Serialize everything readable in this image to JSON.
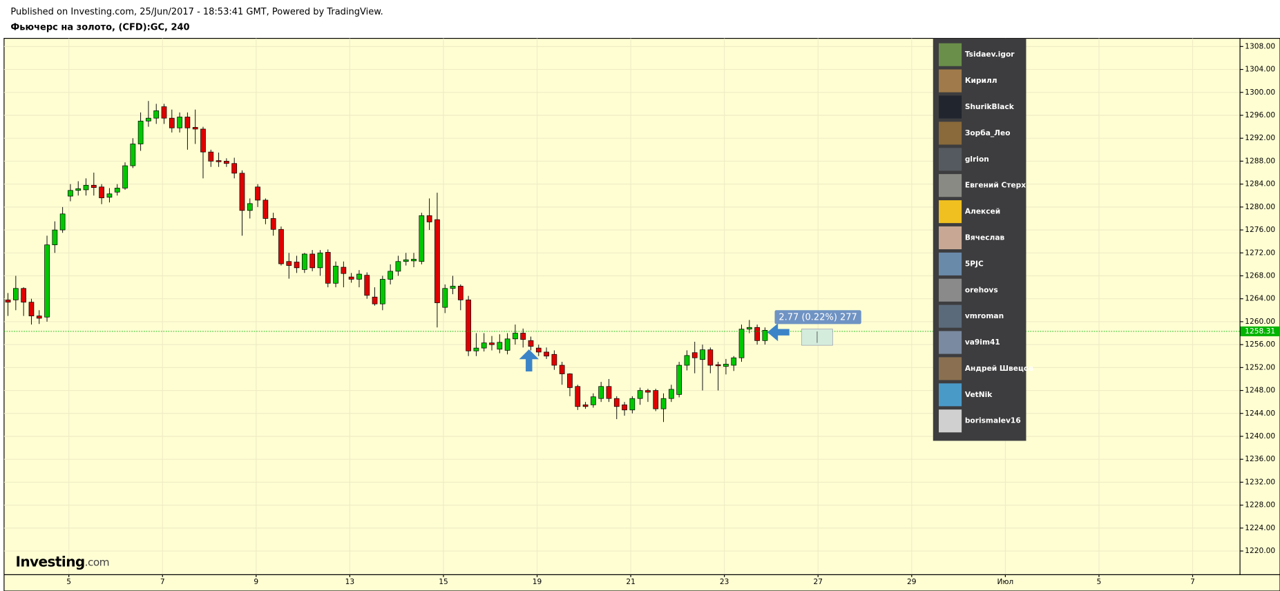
{
  "chart_data": {
    "type": "candlestick",
    "subtitle": "Published on Investing.com, 25/Jun/2017 - 18:53:41 GMT, Powered by TradingView.",
    "title": "Фьючерс на золото, (CFD):GC, 240",
    "annotation": "2.77 (0.22%) 277",
    "x": [
      0.5,
      1.5,
      2.5,
      3.5,
      4.5,
      5.5,
      6.5,
      7.5,
      8.5,
      9.5,
      10.5,
      11.5,
      12.5,
      13.5,
      14.5,
      15.5,
      16.5,
      17.5,
      18.5,
      19.5,
      20.5,
      21.5,
      22.5,
      23.5,
      24.5,
      25.5,
      26.5,
      27.5,
      28.5,
      29.5,
      30.5,
      31.5,
      32.5,
      33.5,
      34.5,
      35.5,
      36.5,
      37.5,
      38.5,
      39.5,
      40.5,
      41.5,
      42.5,
      43.5,
      44.5,
      45.5,
      46.5,
      47.5,
      48.5,
      49.5,
      50.5,
      51.5,
      52.5,
      53.5,
      54.5,
      55.5,
      56.5,
      57.5,
      58.5,
      59.5,
      60.5,
      61.5,
      62.5,
      63.5,
      64.5,
      65.5,
      66.5,
      67.5,
      68.5,
      69.5,
      70.5,
      71.5,
      72.5,
      73.5,
      74.5,
      75.5,
      76.5,
      77.5,
      78.5,
      79.5,
      80.5,
      81.5,
      82.5,
      83.5,
      84.5,
      85.5,
      86.5,
      87.5,
      88.5,
      89.5,
      90.5,
      91.5,
      92.5,
      93.5,
      94.5,
      95.5,
      96.5,
      97.5
    ],
    "open": [
      1263.8,
      1263.8,
      1265.8,
      1263.4,
      1261,
      1260.8,
      1273.4,
      1276,
      1281.9,
      1282.9,
      1283,
      1283.8,
      1283.5,
      1281.7,
      1282.6,
      1283.3,
      1287.2,
      1291,
      1295,
      1295.5,
      1297.5,
      1295.5,
      1293.8,
      1295.7,
      1293.9,
      1293.6,
      1289.6,
      1288.1,
      1288,
      1287.6,
      1285.9,
      1279.4,
      1283.5,
      1281.2,
      1278,
      1276.1,
      1270.5,
      1270.4,
      1269.1,
      1271.8,
      1269.4,
      1272.1,
      1266.7,
      1269.5,
      1267.8,
      1267.4,
      1268.1,
      1264.3,
      1263.1,
      1267.4,
      1268.8,
      1270.5,
      1270.6,
      1270.5,
      1278.5,
      1277.8,
      1262.5,
      1265.8,
      1266.2,
      1263.8,
      1254.9,
      1255.4,
      1256.3,
      1255.2,
      1255,
      1257,
      1258,
      1256.7,
      1255.4,
      1254.7,
      1254.3,
      1252.4,
      1250.9,
      1248.7,
      1245.5,
      1245.5,
      1246.6,
      1248.7,
      1246.6,
      1245.5,
      1244.6,
      1246.6,
      1248,
      1248,
      1244.8,
      1246.6,
      1247.3,
      1252.4,
      1254.6,
      1253.4,
      1255.1,
      1252.5,
      1252.2,
      1252.4,
      1253.7,
      1258.7,
      1259,
      1256.7
    ],
    "high": [
      1265,
      1268,
      1266,
      1264,
      1262,
      1275,
      1277.5,
      1280,
      1284,
      1284.5,
      1285,
      1286,
      1284,
      1283.3,
      1284,
      1287.8,
      1292,
      1296.5,
      1298.5,
      1298,
      1298,
      1297,
      1296.5,
      1296.5,
      1297,
      1294,
      1290,
      1289.5,
      1288.5,
      1288.6,
      1286.4,
      1281.5,
      1284,
      1281.5,
      1279,
      1276.6,
      1272,
      1271.5,
      1272,
      1272.5,
      1272.5,
      1272.6,
      1270.5,
      1270.5,
      1268.5,
      1269,
      1268.6,
      1266,
      1268,
      1270,
      1271.5,
      1272,
      1272,
      1279,
      1281.5,
      1282.5,
      1266.5,
      1268,
      1266.5,
      1264.5,
      1258,
      1258,
      1257.5,
      1257.8,
      1258,
      1259.5,
      1258.8,
      1257.4,
      1256,
      1255.5,
      1255,
      1253,
      1251,
      1249,
      1246,
      1247.5,
      1249.5,
      1250,
      1247,
      1246,
      1247,
      1248.5,
      1248.3,
      1248.3,
      1247.5,
      1249,
      1253,
      1255,
      1256.5,
      1256,
      1255.5,
      1253,
      1253.5,
      1254,
      1259.5,
      1260.3,
      1259.5,
      1259
    ],
    "low": [
      1261,
      1262,
      1261,
      1259.5,
      1259.6,
      1260,
      1272,
      1275.5,
      1281,
      1282,
      1282,
      1282,
      1280.5,
      1280.8,
      1282,
      1283,
      1286.8,
      1289.8,
      1294,
      1294.5,
      1294.5,
      1293,
      1293,
      1290,
      1291,
      1285,
      1287,
      1287,
      1287,
      1285,
      1275,
      1278,
      1280,
      1277,
      1275,
      1269.8,
      1267.5,
      1268.5,
      1268.5,
      1268.8,
      1268,
      1266,
      1266,
      1266,
      1266.8,
      1266,
      1264,
      1262.8,
      1262,
      1266.5,
      1268,
      1269.8,
      1269.5,
      1270,
      1276,
      1259,
      1261.5,
      1264.8,
      1262,
      1254,
      1254,
      1254.8,
      1255,
      1254.5,
      1254.3,
      1256,
      1255.5,
      1255,
      1254,
      1253.5,
      1251.6,
      1249,
      1247,
      1244.6,
      1244.8,
      1245,
      1246,
      1246,
      1243,
      1243.6,
      1244,
      1245.5,
      1246,
      1244.4,
      1242.5,
      1246,
      1246.8,
      1251.5,
      1251,
      1248,
      1251,
      1248,
      1250.8,
      1251.4,
      1253,
      1258,
      1256,
      1256
    ],
    "close": [
      1263.4,
      1265.8,
      1263.4,
      1261,
      1260.6,
      1273.4,
      1276,
      1278.8,
      1282.9,
      1283.2,
      1283.8,
      1283.4,
      1281.6,
      1282.3,
      1283.3,
      1287.2,
      1291,
      1295,
      1295.5,
      1296.8,
      1295.5,
      1293.8,
      1295.7,
      1293.8,
      1293.6,
      1289.6,
      1288,
      1287.9,
      1287.6,
      1285.9,
      1279.4,
      1280.6,
      1281.2,
      1278,
      1276.1,
      1270.1,
      1269.8,
      1269.4,
      1271.8,
      1269.4,
      1272,
      1266.7,
      1269.7,
      1268.4,
      1267.4,
      1268.3,
      1264.6,
      1263.1,
      1267.4,
      1268.8,
      1270.5,
      1270.8,
      1270.9,
      1278.5,
      1277.4,
      1263.3,
      1265.8,
      1266.2,
      1263.8,
      1254.9,
      1255.4,
      1256.3,
      1256,
      1256.4,
      1257,
      1258,
      1256.9,
      1255.7,
      1254.7,
      1254,
      1252.4,
      1250.9,
      1248.5,
      1245.2,
      1245.2,
      1246.9,
      1248.7,
      1246.6,
      1245.2,
      1244.6,
      1246.6,
      1248,
      1247.7,
      1244.8,
      1246.6,
      1248.2,
      1252.4,
      1254.1,
      1253.7,
      1255.1,
      1252.4,
      1252.3,
      1252.6,
      1253.7,
      1258.7,
      1259,
      1256.7,
      1258.5
    ],
    "up_color": "#00c800",
    "down_color": "#e00000",
    "grid": true,
    "last_price": 1258.31,
    "last_price_color": "#00b400",
    "xlim": [
      0,
      158.37
    ],
    "xticks": [
      {
        "value": 8.3,
        "label": "5"
      },
      {
        "value": 20.3,
        "label": "7"
      },
      {
        "value": 32.3,
        "label": "9"
      },
      {
        "value": 44.3,
        "label": "13"
      },
      {
        "value": 56.3,
        "label": "15"
      },
      {
        "value": 68.3,
        "label": "19"
      },
      {
        "value": 80.3,
        "label": "21"
      },
      {
        "value": 92.3,
        "label": "23"
      },
      {
        "value": 104.3,
        "label": "27"
      },
      {
        "value": 116.3,
        "label": "29"
      },
      {
        "value": 128.3,
        "label": "Июл"
      },
      {
        "value": 140.3,
        "label": "5"
      },
      {
        "value": 152.3,
        "label": "7"
      }
    ],
    "ylim": [
      1215.87,
      1309.42
    ],
    "yticks": [
      {
        "value": 1220,
        "label": "1220.00"
      },
      {
        "value": 1224,
        "label": "1224.00"
      },
      {
        "value": 1228,
        "label": "1228.00"
      },
      {
        "value": 1232,
        "label": "1232.00"
      },
      {
        "value": 1236,
        "label": "1236.00"
      },
      {
        "value": 1240,
        "label": "1240.00"
      },
      {
        "value": 1244,
        "label": "1244.00"
      },
      {
        "value": 1248,
        "label": "1248.00"
      },
      {
        "value": 1252,
        "label": "1252.00"
      },
      {
        "value": 1256,
        "label": "1256.00"
      },
      {
        "value": 1260,
        "label": "1260.00"
      },
      {
        "value": 1264,
        "label": "1264.00"
      },
      {
        "value": 1268,
        "label": "1268.00"
      },
      {
        "value": 1272,
        "label": "1272.00"
      },
      {
        "value": 1276,
        "label": "1276.00"
      },
      {
        "value": 1280,
        "label": "1280.00"
      },
      {
        "value": 1284,
        "label": "1284.00"
      },
      {
        "value": 1288,
        "label": "1288.00"
      },
      {
        "value": 1292,
        "label": "1292.00"
      },
      {
        "value": 1296,
        "label": "1296.00"
      },
      {
        "value": 1300,
        "label": "1300.00"
      },
      {
        "value": 1304,
        "label": "1304.00"
      },
      {
        "value": 1308,
        "label": "1308.00"
      }
    ]
  },
  "logo": {
    "name": "Investing",
    "suffix": ".com"
  },
  "overlay": {
    "users": [
      "Tsidaev.igor",
      "Кирилл",
      "ShurikBlack",
      "Зорба_Лео",
      "glrion",
      "Евгений Стерх",
      "Алексей",
      "Вячеслав",
      "5PJC",
      "orehovs",
      "vmroman",
      "va9im41",
      "Андрей Швецов",
      "VetNik",
      "borismalev16"
    ]
  }
}
